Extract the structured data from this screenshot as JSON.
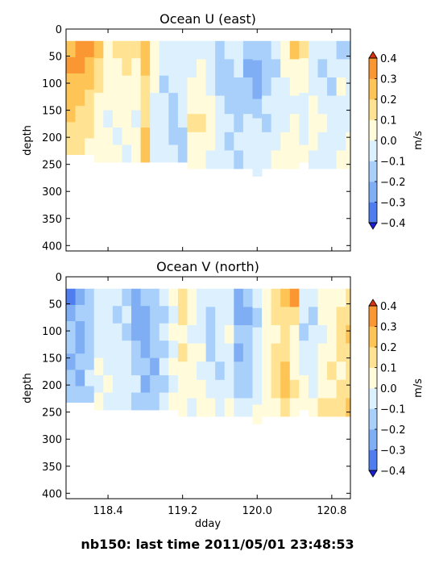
{
  "footer": "nb150: last time 2011/05/01 23:48:53",
  "colorbar": {
    "unit": "m/s",
    "levels": [
      -0.4,
      -0.3,
      -0.2,
      -0.1,
      0.0,
      0.1,
      0.2,
      0.3,
      0.4
    ],
    "tick_labels": [
      "−0.4",
      "−0.3",
      "−0.2",
      "−0.1",
      "0.0",
      "0.1",
      "0.2",
      "0.3",
      "0.4"
    ],
    "colors": [
      "#2a3cf5",
      "#4f7df0",
      "#7faef5",
      "#a9d0fb",
      "#dcf0fd",
      "#fffbdb",
      "#ffe392",
      "#ffc456",
      "#fb9733",
      "#f25a1c"
    ],
    "under_color": "#1a1fd6",
    "over_color": "#d8320f"
  },
  "chart_data": [
    {
      "type": "heatmap",
      "title": "Ocean U (east)",
      "xlabel": "",
      "ylabel": "depth",
      "xlim": [
        117.95,
        121.0
      ],
      "ylim": [
        410,
        0
      ],
      "y_ticks": [
        "0",
        "50",
        "100",
        "150",
        "200",
        "250",
        "300",
        "350",
        "400"
      ],
      "x_ticks": [
        118.4,
        119.2,
        120.0,
        120.8
      ],
      "x_tick_labels": [],
      "data_depth_top": 22,
      "profiles": [
        {
          "x": 118.0,
          "bottom": 232,
          "v": [
            0.2,
            0.3,
            0.25,
            0.2,
            0.2,
            0.15,
            0.1
          ]
        },
        {
          "x": 118.1,
          "bottom": 232,
          "v": [
            0.35,
            0.3,
            0.25,
            0.2,
            0.15,
            0.1,
            0.1
          ]
        },
        {
          "x": 118.2,
          "bottom": 232,
          "v": [
            0.3,
            0.25,
            0.2,
            0.15,
            0.1,
            0.1,
            0.05
          ]
        },
        {
          "x": 118.3,
          "bottom": 246,
          "v": [
            0.2,
            0.15,
            0.1,
            0.05,
            0.0,
            0.0,
            0.0
          ]
        },
        {
          "x": 118.4,
          "bottom": 246,
          "v": [
            0.05,
            0.0,
            0.05,
            0.0,
            -0.05,
            0.0,
            0.0
          ]
        },
        {
          "x": 118.5,
          "bottom": 246,
          "v": [
            0.1,
            0.05,
            0.05,
            0.0,
            0.0,
            -0.05,
            0.0
          ]
        },
        {
          "x": 118.6,
          "bottom": 246,
          "v": [
            0.15,
            0.1,
            0.05,
            0.0,
            0.0,
            0.0,
            -0.05
          ]
        },
        {
          "x": 118.7,
          "bottom": 246,
          "v": [
            0.1,
            0.05,
            0.0,
            0.0,
            -0.05,
            0.0,
            0.0
          ]
        },
        {
          "x": 118.8,
          "bottom": 246,
          "v": [
            0.25,
            0.2,
            0.15,
            0.1,
            0.15,
            0.2,
            0.2
          ]
        },
        {
          "x": 118.9,
          "bottom": 246,
          "v": [
            0.05,
            0.0,
            0.0,
            -0.05,
            -0.05,
            -0.1,
            -0.05
          ]
        },
        {
          "x": 119.0,
          "bottom": 246,
          "v": [
            -0.05,
            -0.1,
            -0.15,
            -0.1,
            -0.1,
            -0.05,
            -0.1
          ]
        },
        {
          "x": 119.1,
          "bottom": 246,
          "v": [
            -0.1,
            -0.05,
            -0.1,
            -0.15,
            -0.2,
            -0.15,
            -0.1
          ]
        },
        {
          "x": 119.2,
          "bottom": 246,
          "v": [
            -0.05,
            -0.1,
            -0.1,
            -0.05,
            -0.1,
            -0.15,
            -0.2
          ]
        },
        {
          "x": 119.3,
          "bottom": 258,
          "v": [
            -0.1,
            -0.05,
            0.0,
            0.05,
            0.1,
            0.05,
            0.0
          ]
        },
        {
          "x": 119.4,
          "bottom": 258,
          "v": [
            -0.05,
            0.0,
            0.05,
            0.05,
            0.1,
            0.05,
            0.0
          ]
        },
        {
          "x": 119.5,
          "bottom": 258,
          "v": [
            -0.1,
            -0.05,
            -0.05,
            0.0,
            0.05,
            0.0,
            -0.05
          ]
        },
        {
          "x": 119.6,
          "bottom": 258,
          "v": [
            -0.15,
            -0.2,
            -0.15,
            -0.1,
            -0.05,
            -0.1,
            -0.05
          ]
        },
        {
          "x": 119.7,
          "bottom": 258,
          "v": [
            -0.1,
            -0.15,
            -0.2,
            -0.15,
            -0.1,
            -0.15,
            -0.1
          ]
        },
        {
          "x": 119.8,
          "bottom": 258,
          "v": [
            -0.05,
            -0.1,
            -0.15,
            -0.2,
            -0.15,
            -0.1,
            -0.15
          ]
        },
        {
          "x": 119.9,
          "bottom": 258,
          "v": [
            -0.15,
            -0.25,
            -0.2,
            -0.15,
            -0.1,
            -0.05,
            -0.1
          ]
        },
        {
          "x": 120.0,
          "bottom": 272,
          "v": [
            -0.2,
            -0.3,
            -0.25,
            -0.15,
            -0.1,
            -0.1,
            -0.05
          ]
        },
        {
          "x": 120.1,
          "bottom": 258,
          "v": [
            -0.15,
            -0.2,
            -0.15,
            -0.1,
            -0.15,
            -0.1,
            -0.05
          ]
        },
        {
          "x": 120.2,
          "bottom": 258,
          "v": [
            -0.1,
            -0.15,
            -0.1,
            -0.05,
            -0.1,
            -0.05,
            0.0
          ]
        },
        {
          "x": 120.3,
          "bottom": 258,
          "v": [
            0.05,
            0.0,
            -0.05,
            -0.1,
            -0.05,
            0.0,
            0.05
          ]
        },
        {
          "x": 120.4,
          "bottom": 258,
          "v": [
            0.2,
            0.05,
            0.0,
            -0.05,
            0.0,
            0.05,
            0.0
          ]
        },
        {
          "x": 120.5,
          "bottom": 246,
          "v": [
            0.1,
            0.05,
            0.0,
            -0.05,
            -0.1,
            -0.05,
            0.0
          ]
        },
        {
          "x": 120.6,
          "bottom": 258,
          "v": [
            -0.05,
            -0.1,
            -0.05,
            0.0,
            0.05,
            0.0,
            -0.05
          ]
        },
        {
          "x": 120.7,
          "bottom": 258,
          "v": [
            -0.1,
            -0.15,
            -0.1,
            -0.05,
            0.0,
            -0.05,
            -0.1
          ]
        },
        {
          "x": 120.8,
          "bottom": 258,
          "v": [
            -0.05,
            -0.1,
            -0.15,
            -0.1,
            -0.05,
            -0.1,
            -0.05
          ]
        },
        {
          "x": 120.9,
          "bottom": 258,
          "v": [
            -0.15,
            -0.05,
            0.0,
            -0.05,
            -0.1,
            -0.05,
            0.0
          ]
        },
        {
          "x": 121.0,
          "bottom": 258,
          "v": [
            -0.2,
            -0.1,
            -0.05,
            -0.1,
            -0.05,
            0.0,
            0.05
          ]
        }
      ]
    },
    {
      "type": "heatmap",
      "title": "Ocean V (north)",
      "xlabel": "dday",
      "ylabel": "depth",
      "xlim": [
        117.95,
        121.0
      ],
      "ylim": [
        410,
        0
      ],
      "y_ticks": [
        "0",
        "50",
        "100",
        "150",
        "200",
        "250",
        "300",
        "350",
        "400"
      ],
      "x_ticks": [
        118.4,
        119.2,
        120.0,
        120.8
      ],
      "x_tick_labels": [
        "118.4",
        "119.2",
        "120.0",
        "120.8"
      ],
      "data_depth_top": 22,
      "profiles": [
        {
          "x": 118.0,
          "bottom": 232,
          "v": [
            -0.35,
            -0.25,
            -0.2,
            -0.2,
            -0.25,
            -0.2,
            -0.15
          ]
        },
        {
          "x": 118.1,
          "bottom": 232,
          "v": [
            -0.25,
            -0.2,
            -0.25,
            -0.3,
            -0.2,
            -0.25,
            -0.2
          ]
        },
        {
          "x": 118.2,
          "bottom": 232,
          "v": [
            -0.15,
            -0.2,
            -0.15,
            -0.2,
            -0.15,
            -0.1,
            -0.15
          ]
        },
        {
          "x": 118.3,
          "bottom": 246,
          "v": [
            -0.1,
            -0.05,
            -0.1,
            -0.05,
            0.0,
            -0.05,
            0.0
          ]
        },
        {
          "x": 118.4,
          "bottom": 246,
          "v": [
            -0.05,
            -0.1,
            -0.05,
            -0.1,
            -0.05,
            0.0,
            -0.05
          ]
        },
        {
          "x": 118.5,
          "bottom": 246,
          "v": [
            -0.1,
            -0.15,
            -0.1,
            -0.05,
            -0.1,
            -0.05,
            -0.1
          ]
        },
        {
          "x": 118.6,
          "bottom": 246,
          "v": [
            -0.15,
            -0.1,
            -0.15,
            -0.1,
            -0.05,
            -0.1,
            -0.05
          ]
        },
        {
          "x": 118.7,
          "bottom": 246,
          "v": [
            -0.25,
            -0.3,
            -0.25,
            -0.2,
            -0.15,
            -0.1,
            -0.15
          ]
        },
        {
          "x": 118.8,
          "bottom": 246,
          "v": [
            -0.2,
            -0.25,
            -0.3,
            -0.25,
            -0.2,
            -0.25,
            -0.2
          ]
        },
        {
          "x": 118.9,
          "bottom": 246,
          "v": [
            -0.15,
            -0.2,
            -0.15,
            -0.2,
            -0.25,
            -0.2,
            -0.15
          ]
        },
        {
          "x": 119.0,
          "bottom": 246,
          "v": [
            -0.1,
            -0.15,
            -0.1,
            -0.15,
            -0.1,
            -0.15,
            -0.1
          ]
        },
        {
          "x": 119.1,
          "bottom": 246,
          "v": [
            0.0,
            -0.05,
            0.0,
            -0.05,
            0.0,
            -0.05,
            0.0
          ]
        },
        {
          "x": 119.2,
          "bottom": 258,
          "v": [
            0.15,
            0.1,
            0.05,
            0.1,
            0.05,
            0.0,
            0.05
          ]
        },
        {
          "x": 119.3,
          "bottom": 258,
          "v": [
            0.05,
            0.0,
            -0.05,
            0.0,
            0.05,
            0.0,
            -0.05
          ]
        },
        {
          "x": 119.4,
          "bottom": 258,
          "v": [
            -0.05,
            -0.1,
            -0.05,
            0.0,
            -0.05,
            0.0,
            0.05
          ]
        },
        {
          "x": 119.5,
          "bottom": 258,
          "v": [
            -0.1,
            -0.15,
            -0.2,
            -0.15,
            -0.1,
            -0.05,
            0.0
          ]
        },
        {
          "x": 119.6,
          "bottom": 258,
          "v": [
            -0.05,
            -0.1,
            -0.05,
            -0.1,
            -0.15,
            -0.1,
            -0.05
          ]
        },
        {
          "x": 119.7,
          "bottom": 258,
          "v": [
            -0.1,
            -0.05,
            0.0,
            -0.05,
            -0.1,
            -0.05,
            0.0
          ]
        },
        {
          "x": 119.8,
          "bottom": 258,
          "v": [
            -0.3,
            -0.25,
            -0.2,
            -0.25,
            -0.2,
            -0.15,
            -0.1
          ]
        },
        {
          "x": 119.9,
          "bottom": 258,
          "v": [
            -0.2,
            -0.25,
            -0.2,
            -0.15,
            -0.2,
            -0.15,
            -0.1
          ]
        },
        {
          "x": 120.0,
          "bottom": 272,
          "v": [
            -0.1,
            -0.15,
            -0.1,
            -0.05,
            -0.1,
            -0.05,
            0.0
          ]
        },
        {
          "x": 120.1,
          "bottom": 258,
          "v": [
            0.05,
            0.0,
            0.05,
            0.0,
            0.05,
            0.0,
            0.05
          ]
        },
        {
          "x": 120.2,
          "bottom": 258,
          "v": [
            0.15,
            0.1,
            0.05,
            0.1,
            0.15,
            0.1,
            0.05
          ]
        },
        {
          "x": 120.3,
          "bottom": 258,
          "v": [
            0.2,
            0.15,
            0.1,
            0.15,
            0.2,
            0.2,
            0.15
          ]
        },
        {
          "x": 120.4,
          "bottom": 258,
          "v": [
            0.3,
            0.1,
            0.05,
            0.0,
            0.05,
            0.1,
            0.05
          ]
        },
        {
          "x": 120.5,
          "bottom": 246,
          "v": [
            -0.05,
            -0.1,
            -0.15,
            -0.1,
            -0.05,
            0.0,
            0.05
          ]
        },
        {
          "x": 120.6,
          "bottom": 258,
          "v": [
            -0.1,
            -0.15,
            -0.1,
            -0.05,
            -0.1,
            -0.05,
            0.0
          ]
        },
        {
          "x": 120.7,
          "bottom": 258,
          "v": [
            0.05,
            0.0,
            -0.05,
            0.0,
            0.05,
            0.05,
            0.1
          ]
        },
        {
          "x": 120.8,
          "bottom": 258,
          "v": [
            0.0,
            0.05,
            0.0,
            0.05,
            0.1,
            0.05,
            0.1
          ]
        },
        {
          "x": 120.9,
          "bottom": 258,
          "v": [
            0.05,
            0.1,
            0.15,
            0.1,
            0.05,
            0.1,
            0.15
          ]
        },
        {
          "x": 121.0,
          "bottom": 258,
          "v": [
            0.1,
            0.15,
            0.2,
            0.15,
            0.1,
            0.15,
            0.2
          ]
        }
      ]
    }
  ]
}
